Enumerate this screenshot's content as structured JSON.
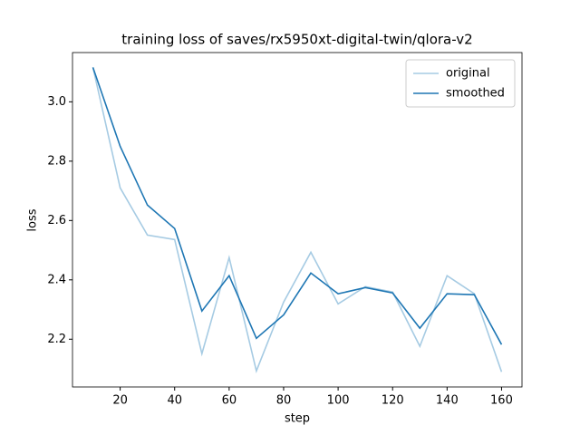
{
  "chart_data": {
    "type": "line",
    "title": "training loss of saves/rx5950xt-digital-twin/qlora-v2",
    "x_label": "step",
    "y_label": "loss",
    "x": [
      10,
      20,
      30,
      40,
      50,
      60,
      70,
      80,
      90,
      100,
      110,
      120,
      130,
      140,
      150,
      160
    ],
    "series": [
      {
        "name": "original",
        "color": "#a6cbe3",
        "values": [
          3.116,
          2.71,
          2.551,
          2.536,
          2.151,
          2.475,
          2.093,
          2.325,
          2.493,
          2.319,
          2.377,
          2.359,
          2.176,
          2.414,
          2.353,
          2.09
        ]
      },
      {
        "name": "smoothed",
        "color": "#1f77b4",
        "values": [
          3.116,
          2.85,
          2.652,
          2.573,
          2.295,
          2.414,
          2.203,
          2.282,
          2.423,
          2.353,
          2.374,
          2.356,
          2.237,
          2.353,
          2.35,
          2.182
        ]
      }
    ],
    "xlim": [
      2.5,
      167.5
    ],
    "ylim": [
      2.039,
      3.166
    ],
    "xticks": [
      20,
      40,
      60,
      80,
      100,
      120,
      140,
      160
    ],
    "yticks": [
      {
        "value": 2.2,
        "label": "2.2"
      },
      {
        "value": 2.4,
        "label": "2.4"
      },
      {
        "value": 2.6,
        "label": "2.6"
      },
      {
        "value": 2.8,
        "label": "2.8"
      },
      {
        "value": 3.0,
        "label": "3.0"
      }
    ],
    "legend": "upper right"
  }
}
